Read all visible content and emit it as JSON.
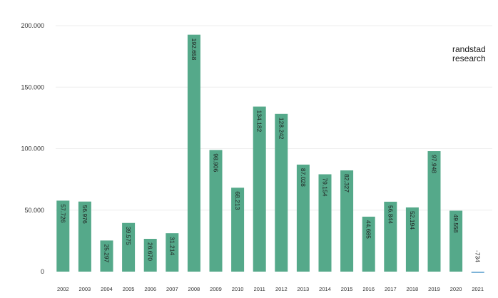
{
  "brand": {
    "line1": "randstad",
    "line2": "research"
  },
  "colors": {
    "bar": "#55a98a",
    "bar_negative": "#7db3d8",
    "grid": "#eeeeee",
    "axis_text": "#333333"
  },
  "chart_data": {
    "type": "bar",
    "title": "",
    "xlabel": "",
    "ylabel": "",
    "categories": [
      "2002",
      "2003",
      "2004",
      "2005",
      "2006",
      "2007",
      "2008",
      "2009",
      "2010",
      "2011",
      "2012",
      "2013",
      "2014",
      "2015",
      "2016",
      "2017",
      "2018",
      "2019",
      "2020",
      "2021"
    ],
    "values": [
      57726,
      56976,
      25297,
      39575,
      26670,
      31214,
      192658,
      98906,
      68213,
      134182,
      128242,
      87028,
      79154,
      82327,
      44685,
      56844,
      52194,
      97948,
      49558,
      -734
    ],
    "data_labels": [
      "57.726",
      "56.976",
      "25.297",
      "39.575",
      "26.670",
      "31.214",
      "192.658",
      "98.906",
      "68.213",
      "134.182",
      "128.242",
      "87.028",
      "79.154",
      "82.327",
      "44.685",
      "56.844",
      "52.194",
      "97.948",
      "49.558",
      "-734"
    ],
    "ylim": [
      0,
      200000
    ],
    "yticks": [
      0,
      50000,
      100000,
      150000,
      200000
    ],
    "ytick_labels": [
      "0",
      "50.000",
      "100.000",
      "150.000",
      "200.000"
    ],
    "grid": true,
    "legend": "none"
  }
}
